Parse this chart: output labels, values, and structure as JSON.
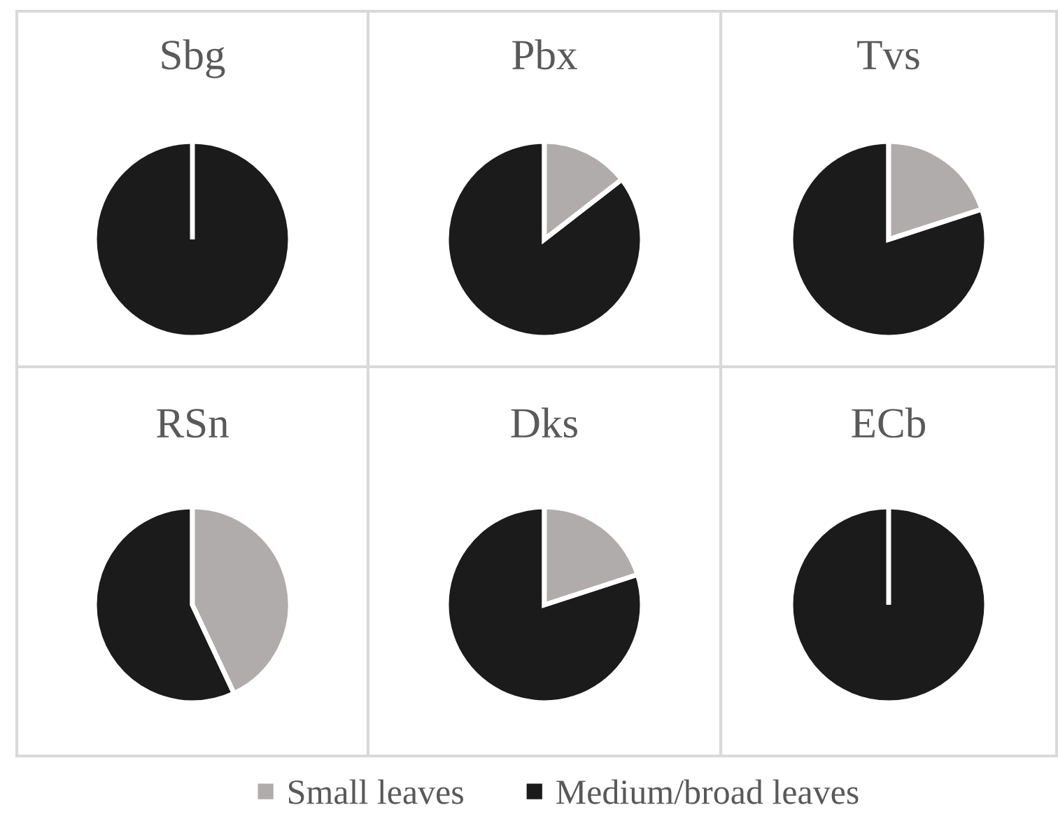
{
  "chart_data": {
    "type": "pie",
    "categories": [
      "Small leaves",
      "Medium/broad leaves"
    ],
    "colors": [
      "#b0acab",
      "#1b1b1b"
    ],
    "legend": "bottom",
    "series": [
      {
        "name": "Sbg",
        "values": [
          0,
          100
        ]
      },
      {
        "name": "Pbx",
        "values": [
          14.5,
          85.5
        ]
      },
      {
        "name": "Tvs",
        "values": [
          20,
          80
        ]
      },
      {
        "name": "RSn",
        "values": [
          43,
          57
        ]
      },
      {
        "name": "Dks",
        "values": [
          20,
          80
        ]
      },
      {
        "name": "ECb",
        "values": [
          0,
          100
        ]
      }
    ]
  }
}
